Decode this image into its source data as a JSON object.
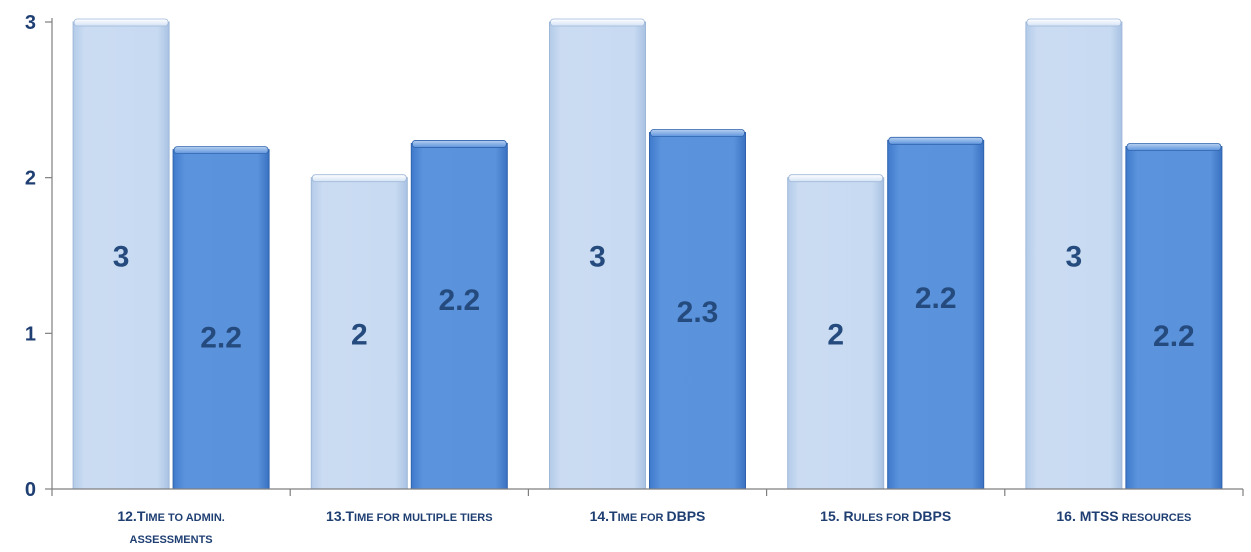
{
  "chart_data": {
    "type": "bar",
    "title": "",
    "xlabel": "",
    "ylabel": "",
    "ylim": [
      0,
      3
    ],
    "yticks": [
      0,
      1,
      2,
      3
    ],
    "grid": false,
    "legend": "none",
    "categories": [
      "12.Time to admin. assessments",
      "13.Time for multiple tiers",
      "14.Time for DBPS",
      "15. Rules for DBPS",
      "16. MTSS resources"
    ],
    "category_label_parts": [
      [
        [
          "12.T",
          "big"
        ],
        [
          "ime to admin.",
          "small"
        ],
        [
          "|",
          "break"
        ],
        [
          "assessments",
          "small"
        ]
      ],
      [
        [
          "13.T",
          "big"
        ],
        [
          "ime for multiple tiers",
          "small"
        ]
      ],
      [
        [
          "14.T",
          "big"
        ],
        [
          "ime for ",
          "small"
        ],
        [
          "DBPS",
          "big"
        ]
      ],
      [
        [
          "15. R",
          "big"
        ],
        [
          "ules for ",
          "small"
        ],
        [
          "DBPS",
          "big"
        ]
      ],
      [
        [
          "16. MTSS",
          "big"
        ],
        [
          " resources",
          "small"
        ]
      ]
    ],
    "series": [
      {
        "values": [
          3,
          2,
          3,
          2,
          3
        ],
        "labels": [
          "3",
          "2",
          "3",
          "2",
          "3"
        ],
        "values_estimated_from_height": [
          3.0,
          2.0,
          3.0,
          2.0,
          3.0
        ]
      },
      {
        "values": [
          2.2,
          2.2,
          2.3,
          2.2,
          2.2
        ],
        "labels": [
          "2.2",
          "2.2",
          "2.3",
          "2.2",
          "2.2"
        ],
        "values_estimated_from_height": [
          2.18,
          2.22,
          2.29,
          2.24,
          2.2
        ]
      }
    ],
    "colors": {
      "series_0": "#c5d9f1",
      "series_1": "#558ed5",
      "axis": "#7f7f7f",
      "text": "#1f3f73"
    }
  }
}
